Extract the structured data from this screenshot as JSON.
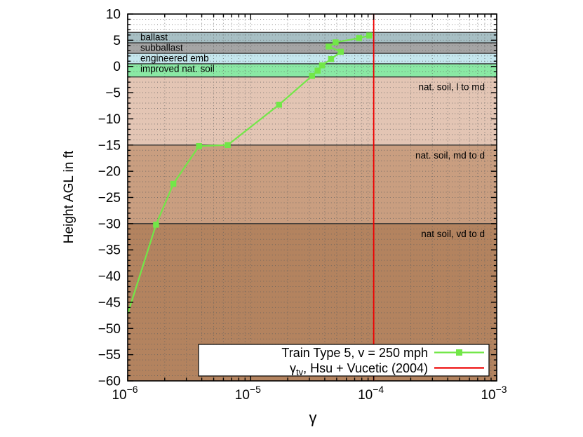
{
  "canvas": {
    "background": "#ffffff"
  },
  "chart_data": {
    "type": "line",
    "title": "",
    "xlabel": "γ",
    "ylabel": "Height AGL in ft",
    "x_scale": "log10",
    "xlim": [
      1e-06,
      0.001
    ],
    "ylim": [
      -60,
      10
    ],
    "y_major_step": 5,
    "y_minor_step": 1,
    "grid": "dotted",
    "x_ticks": [
      {
        "base": "10",
        "exp": "−6"
      },
      {
        "base": "10",
        "exp": "−5"
      },
      {
        "base": "10",
        "exp": "−4"
      },
      {
        "base": "10",
        "exp": "−3"
      }
    ],
    "y_ticks": [
      "10",
      "5",
      "0",
      "−5",
      "−10",
      "−15",
      "−20",
      "−25",
      "−30",
      "−35",
      "−40",
      "−45",
      "−50",
      "−55",
      "−60"
    ],
    "bands": [
      {
        "label": "ballast",
        "from": 6.5,
        "to": 4.5,
        "color": "#a7bfc4",
        "label_side": "left"
      },
      {
        "label": "subballast",
        "from": 4.5,
        "to": 2.5,
        "color": "#a5a5a5",
        "label_side": "left"
      },
      {
        "label": "engineered emb",
        "from": 2.5,
        "to": 0.5,
        "color": "#c5e7ee",
        "label_side": "left"
      },
      {
        "label": "improved nat. soil",
        "from": 0.5,
        "to": -2.0,
        "color": "#8ae9a4",
        "label_side": "left"
      },
      {
        "label": "nat. soil, l to md",
        "from": -2.0,
        "to": -15,
        "color": "#e3c5b4",
        "label_side": "right"
      },
      {
        "label": "nat. soil, md to d",
        "from": -15,
        "to": -30,
        "color": "#c99e80",
        "label_side": "right"
      },
      {
        "label": "nat soil, vd to d",
        "from": -30,
        "to": -60,
        "color": "#b3835f",
        "label_side": "right"
      }
    ],
    "series": [
      {
        "name": "Train Type 5, v = 250 mph",
        "type": "line",
        "color": "#72e748",
        "marker": "filled-square",
        "first_marker_hidden": true,
        "points": [
          [
            1e-06,
            -47.2
          ],
          [
            1.7e-06,
            -30.2
          ],
          [
            2.35e-06,
            -22.4
          ],
          [
            3.8e-06,
            -15.2
          ],
          [
            6.5e-06,
            -15.0
          ],
          [
            1.7e-05,
            -7.3
          ],
          [
            3.15e-05,
            -1.8
          ],
          [
            3.5e-05,
            -0.8
          ],
          [
            3.8e-05,
            0.2
          ],
          [
            4.5e-05,
            1.4
          ],
          [
            5.4e-05,
            2.8
          ],
          [
            4.3e-05,
            3.8
          ],
          [
            4.9e-05,
            4.6
          ],
          [
            7.6e-05,
            5.4
          ],
          [
            9.2e-05,
            5.9
          ]
        ]
      },
      {
        "name": "γtv, Hsu + Vucetic (2004)",
        "type": "vline",
        "color": "#ee0000",
        "x": 0.0001
      }
    ],
    "legend": {
      "position": "inside-bottom",
      "entries": [
        {
          "series": 0,
          "label": "Train Type 5, v = 250 mph"
        },
        {
          "series": 1,
          "label_parts": {
            "prefix": "γ",
            "sub": "tv",
            "rest": ", Hsu + Vucetic (2004)"
          }
        }
      ]
    }
  }
}
